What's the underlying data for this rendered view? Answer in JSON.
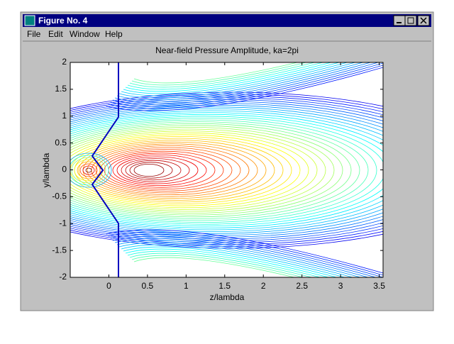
{
  "window": {
    "title": "Figure No. 4",
    "menu": [
      "File",
      "Edit",
      "Window",
      "Help"
    ]
  },
  "chart_data": {
    "type": "contour",
    "title": "Near-field Pressure Amplitude, ka=2pi",
    "x_label": "z/lambda",
    "y_label": "y/lambda",
    "xlim": [
      -0.5,
      3.55
    ],
    "ylim": [
      -2,
      2
    ],
    "xticks": [
      0,
      0.5,
      1,
      1.5,
      2,
      2.5,
      3,
      3.5
    ],
    "yticks": [
      -2,
      -1.5,
      -1,
      -0.5,
      0,
      0.5,
      1,
      1.5,
      2
    ]
  }
}
